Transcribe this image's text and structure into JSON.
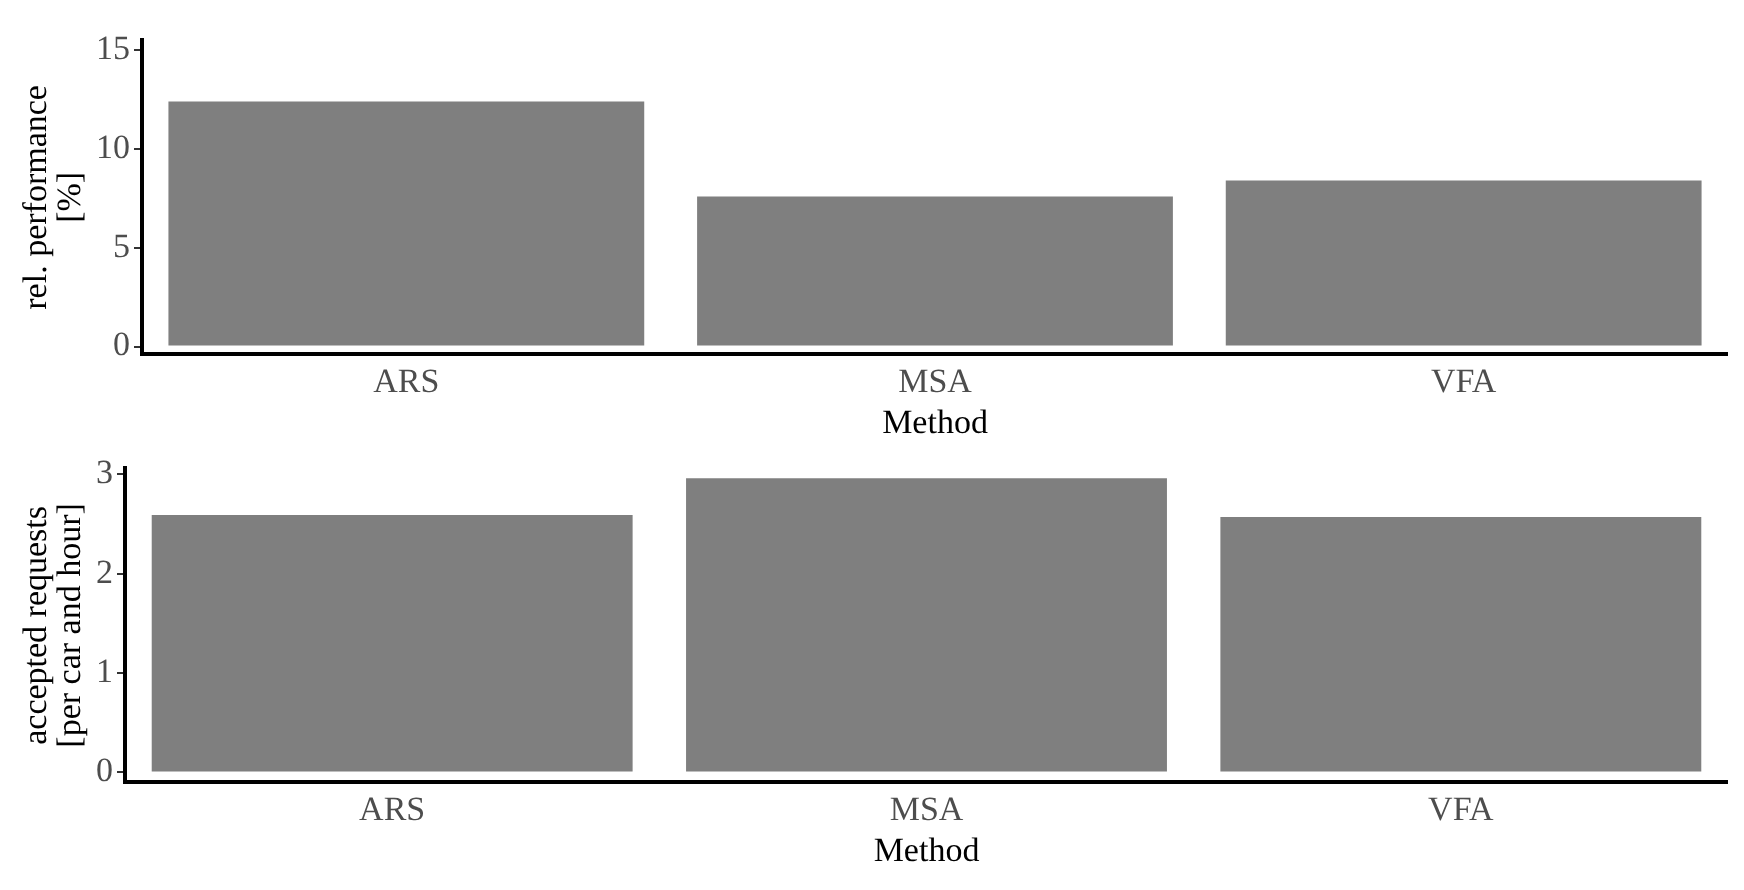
{
  "chart_data": [
    {
      "type": "bar",
      "categories": [
        "ARS",
        "MSA",
        "VFA"
      ],
      "values": [
        12.4,
        7.6,
        8.4
      ],
      "color": "#7f7f7f",
      "xlabel": "Method",
      "ylabel": "rel. performance\n[%]",
      "ylim": [
        -0.4,
        15.5
      ],
      "yticks": [
        0,
        5,
        10,
        15
      ],
      "grid": false
    },
    {
      "type": "bar",
      "categories": [
        "ARS",
        "MSA",
        "VFA"
      ],
      "values": [
        2.59,
        2.96,
        2.57
      ],
      "color": "#7f7f7f",
      "xlabel": "Method",
      "ylabel": "accepted requests\n[per car and hour]",
      "ylim": [
        -0.1,
        3.06
      ],
      "yticks": [
        0,
        1,
        2,
        3
      ],
      "grid": false
    }
  ]
}
